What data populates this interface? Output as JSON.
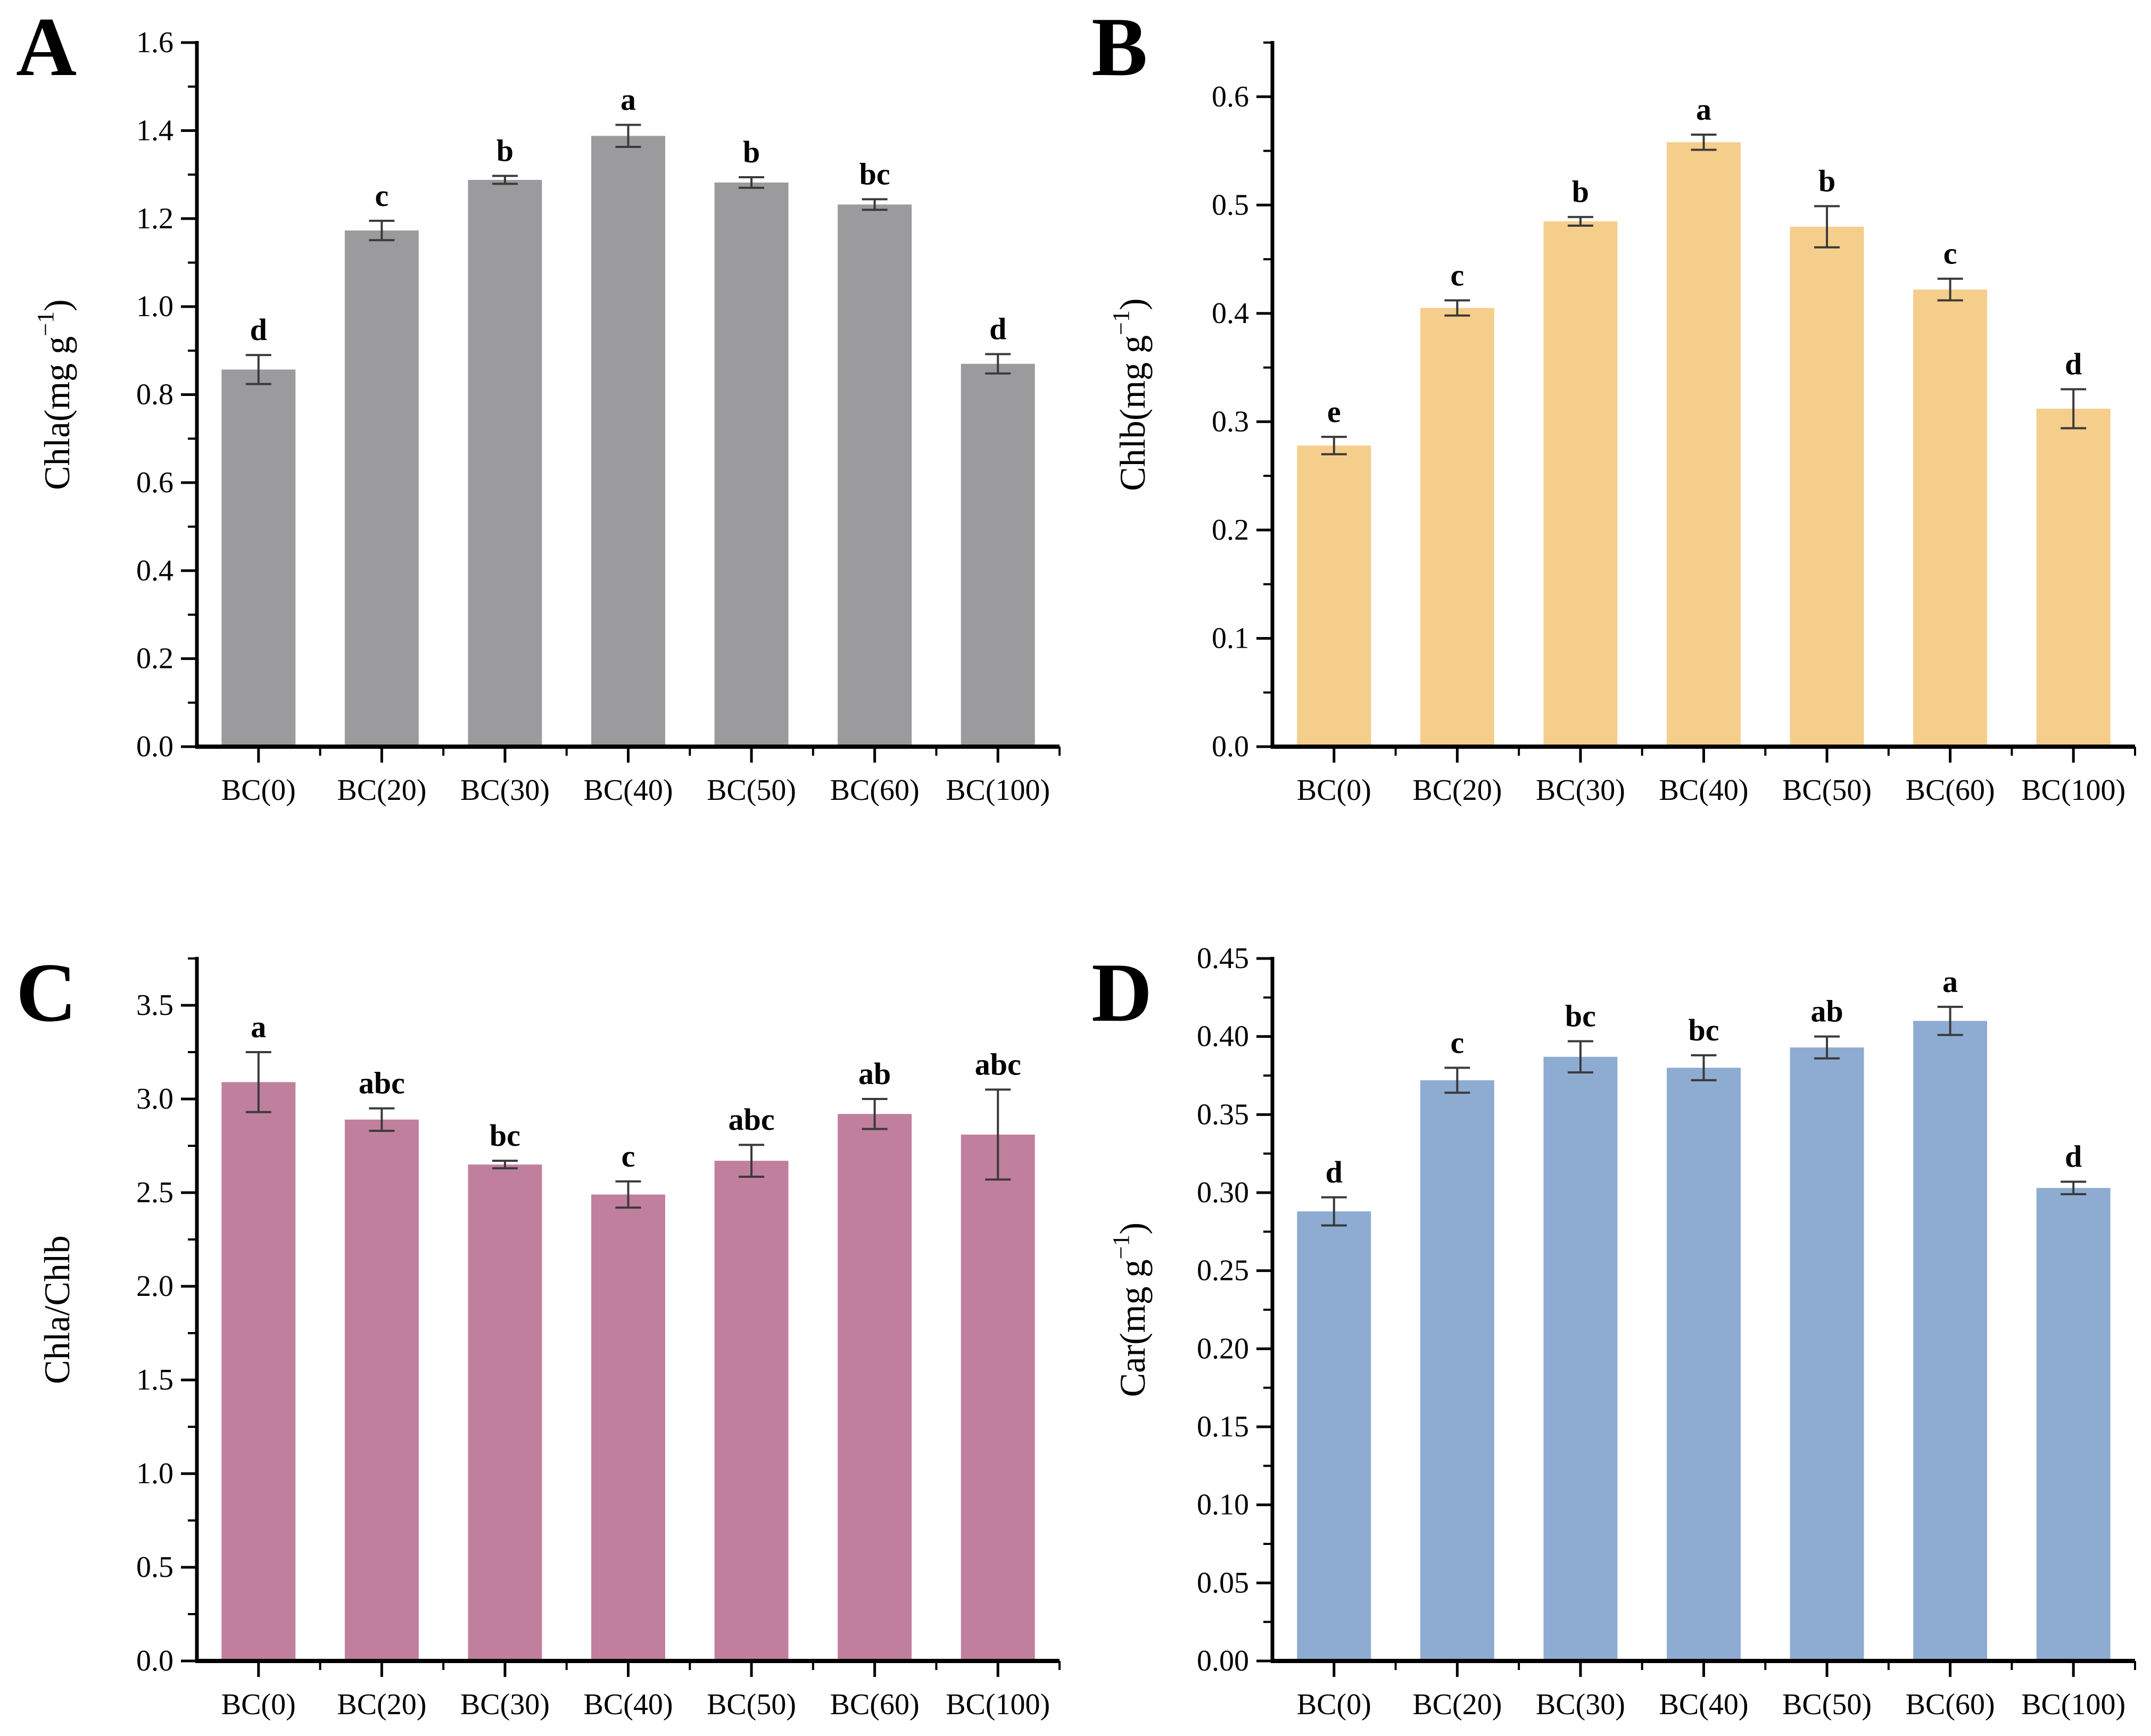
{
  "figure_type": "four-panel bar chart figure (pigment contents under biochar treatments)",
  "chart_data": [
    {
      "panel": "A",
      "type": "bar",
      "categories": [
        "BC(0)",
        "BC(20)",
        "BC(30)",
        "BC(40)",
        "BC(50)",
        "BC(60)",
        "BC(100)"
      ],
      "values": [
        0.857,
        1.173,
        1.288,
        1.388,
        1.282,
        1.232,
        0.87
      ],
      "errors": [
        0.033,
        0.022,
        0.009,
        0.025,
        0.012,
        0.012,
        0.022
      ],
      "sig_letters": [
        "d",
        "c",
        "b",
        "a",
        "b",
        "bc",
        "d"
      ],
      "ylabel_prefix": "Chla(mg g",
      "ylabel_sup": "−1",
      "ylabel_suffix": ")",
      "xlabel": "",
      "ylim": [
        0,
        1.6
      ],
      "axis_top": 1.6,
      "ytick_max": 1.6,
      "ytick_step": 0.2,
      "ytick_decimals": 1,
      "grid": "off",
      "legend": "none",
      "bar_color": "#9B9B9D",
      "error_color": "#3a3a3a"
    },
    {
      "panel": "B",
      "type": "bar",
      "categories": [
        "BC(0)",
        "BC(20)",
        "BC(30)",
        "BC(40)",
        "BC(50)",
        "BC(60)",
        "BC(100)"
      ],
      "values": [
        0.278,
        0.405,
        0.485,
        0.558,
        0.48,
        0.422,
        0.312
      ],
      "errors": [
        0.008,
        0.007,
        0.004,
        0.007,
        0.019,
        0.01,
        0.018
      ],
      "sig_letters": [
        "e",
        "c",
        "b",
        "a",
        "b",
        "c",
        "d"
      ],
      "ylabel_prefix": "Chlb(mg g",
      "ylabel_sup": "−1",
      "ylabel_suffix": ")",
      "xlabel": "",
      "ylim": [
        0,
        0.65
      ],
      "axis_top": 0.65,
      "ytick_max": 0.6,
      "ytick_step": 0.1,
      "ytick_decimals": 1,
      "grid": "off",
      "legend": "none",
      "bar_color": "#F5CE8C",
      "error_color": "#3a3a3a"
    },
    {
      "panel": "C",
      "type": "bar",
      "categories": [
        "BC(0)",
        "BC(20)",
        "BC(30)",
        "BC(40)",
        "BC(50)",
        "BC(60)",
        "BC(100)"
      ],
      "values": [
        3.09,
        2.89,
        2.65,
        2.49,
        2.67,
        2.92,
        2.81
      ],
      "errors": [
        0.16,
        0.06,
        0.02,
        0.07,
        0.085,
        0.08,
        0.24
      ],
      "sig_letters": [
        "a",
        "abc",
        "bc",
        "c",
        "abc",
        "ab",
        "abc"
      ],
      "ylabel_prefix": "Chla/Chlb",
      "ylabel_sup": "",
      "ylabel_suffix": "",
      "xlabel": "",
      "ylim": [
        0,
        3.75
      ],
      "axis_top": 3.75,
      "ytick_max": 3.5,
      "ytick_step": 0.5,
      "ytick_decimals": 1,
      "grid": "off",
      "legend": "none",
      "bar_color": "#C17F9E",
      "error_color": "#3a3a3a"
    },
    {
      "panel": "D",
      "type": "bar",
      "categories": [
        "BC(0)",
        "BC(20)",
        "BC(30)",
        "BC(40)",
        "BC(50)",
        "BC(60)",
        "BC(100)"
      ],
      "values": [
        0.288,
        0.372,
        0.387,
        0.38,
        0.393,
        0.41,
        0.303
      ],
      "errors": [
        0.009,
        0.008,
        0.01,
        0.008,
        0.007,
        0.009,
        0.004
      ],
      "sig_letters": [
        "d",
        "c",
        "bc",
        "bc",
        "ab",
        "a",
        "d"
      ],
      "ylabel_prefix": "Car(mg g",
      "ylabel_sup": "−1",
      "ylabel_suffix": ")",
      "xlabel": "",
      "ylim": [
        0,
        0.45
      ],
      "axis_top": 0.45,
      "ytick_max": 0.45,
      "ytick_step": 0.05,
      "ytick_decimals": 2,
      "grid": "off",
      "legend": "none",
      "bar_color": "#8EACD2",
      "error_color": "#3a3a3a"
    }
  ]
}
